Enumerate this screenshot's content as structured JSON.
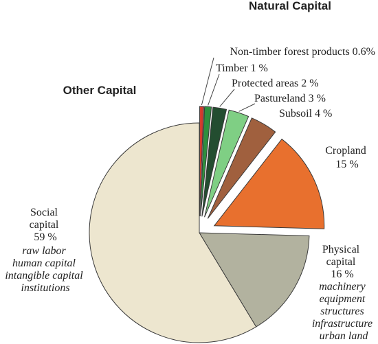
{
  "chart_data": {
    "type": "pie",
    "groups": [
      {
        "name": "Natural Capital"
      },
      {
        "name": "Other Capital"
      }
    ],
    "slices": [
      {
        "label": "Non-timber forest products",
        "value": 0.6,
        "value_text": "0.6%",
        "group": "Natural Capital",
        "color": "#d23a2e"
      },
      {
        "label": "Timber",
        "value": 1,
        "value_text": "1 %",
        "group": "Natural Capital",
        "color": "#2e8f3e"
      },
      {
        "label": "Protected areas",
        "value": 2,
        "value_text": "2 %",
        "group": "Natural Capital",
        "color": "#234d30"
      },
      {
        "label": "Pastureland",
        "value": 3,
        "value_text": "3 %",
        "group": "Natural Capital",
        "color": "#7fcf84"
      },
      {
        "label": "Subsoil",
        "value": 4,
        "value_text": "4 %",
        "group": "Natural Capital",
        "color": "#a0603e"
      },
      {
        "label": "Cropland",
        "value": 15,
        "value_text": "15 %",
        "group": "Natural Capital",
        "color": "#e8702e"
      },
      {
        "label": "Physical capital",
        "label_lines": [
          "Physical",
          "capital"
        ],
        "value": 16,
        "value_text": "16 %",
        "group": "Other Capital",
        "color": "#b2b29f",
        "details": [
          "machinery",
          "equipment",
          "structures",
          "infrastructure",
          "urban land"
        ]
      },
      {
        "label": "Social capital",
        "label_lines": [
          "Social",
          "capital"
        ],
        "value": 59,
        "value_text": "59 %",
        "group": "Other Capital",
        "color": "#ede6cf",
        "details": [
          "raw labor",
          "human capital",
          "intangible capital",
          "institutions"
        ]
      }
    ]
  }
}
